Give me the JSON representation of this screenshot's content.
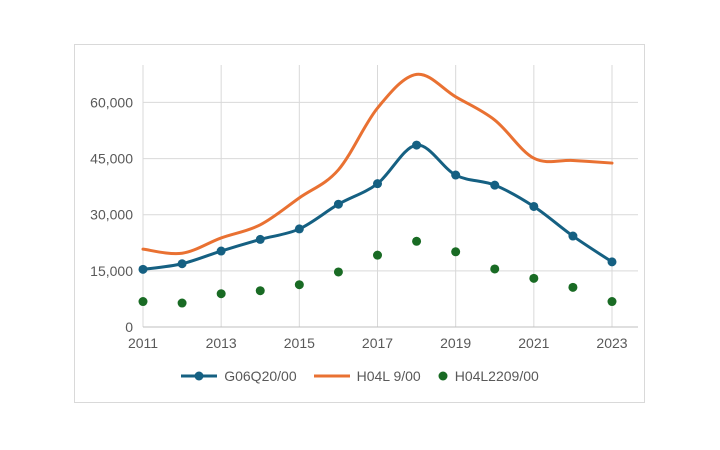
{
  "chart_data": {
    "type": "line",
    "title": "",
    "xlabel": "",
    "ylabel": "",
    "x": [
      2011,
      2012,
      2013,
      2014,
      2015,
      2016,
      2017,
      2018,
      2019,
      2020,
      2021,
      2022,
      2023
    ],
    "series": [
      {
        "name": "G06Q20/00",
        "style": "line-markers",
        "color": "#156082",
        "smooth": true,
        "values": [
          15400,
          16900,
          20300,
          23400,
          26200,
          32800,
          38300,
          48600,
          40600,
          37900,
          32200,
          24300,
          17400
        ]
      },
      {
        "name": "H04L 9/00",
        "style": "line",
        "color": "#E97132",
        "smooth": true,
        "values": [
          20800,
          19700,
          23800,
          27300,
          34500,
          42000,
          58500,
          67500,
          61500,
          55300,
          45100,
          44500,
          43800
        ]
      },
      {
        "name": "H04L2209/00",
        "style": "scatter",
        "color": "#196B24",
        "smooth": false,
        "values": [
          6800,
          6400,
          8900,
          9700,
          11300,
          14700,
          19200,
          22900,
          20100,
          15500,
          13000,
          10600,
          6800
        ]
      }
    ],
    "x_tick_years": [
      2011,
      2013,
      2015,
      2017,
      2019,
      2021,
      2023
    ],
    "x_tick_labels": [
      "2011",
      "2013",
      "2015",
      "2017",
      "2019",
      "2021",
      "2023"
    ],
    "y_ticks": [
      0,
      15000,
      30000,
      45000,
      60000
    ],
    "y_tick_labels": [
      "0",
      "15,000",
      "30,000",
      "45,000",
      "60,000"
    ],
    "ylim": [
      0,
      70000
    ],
    "xlim": [
      2011,
      2023.67
    ],
    "grid": true,
    "legend_position": "bottom"
  },
  "style": {
    "grid_color": "#d9d9d9",
    "axis_color": "#bfbfbf",
    "text_color": "#595959",
    "border_color": "#d9d9d9",
    "background": "#ffffff"
  }
}
